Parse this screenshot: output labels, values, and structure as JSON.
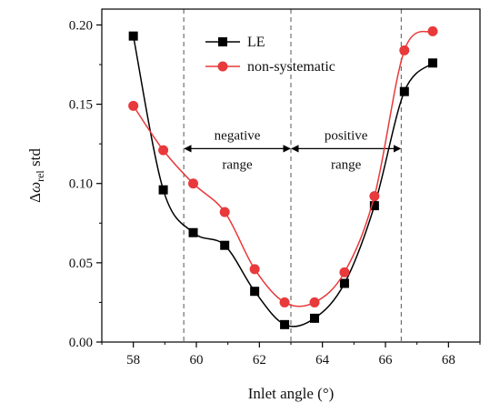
{
  "chart_data": {
    "type": "line",
    "title": "",
    "xlabel": "Inlet angle (°)",
    "ylabel": {
      "prefix": "Δ",
      "symbol": "ω",
      "subscript": "rel",
      "suffix": " std"
    },
    "xlim": [
      57,
      69
    ],
    "ylim": [
      0,
      0.21
    ],
    "x_ticks": [
      58,
      60,
      62,
      64,
      66,
      68
    ],
    "y_ticks": [
      0.0,
      0.05,
      0.1,
      0.15,
      0.2
    ],
    "x_tick_labels": [
      "58",
      "60",
      "62",
      "64",
      "66",
      "68"
    ],
    "y_tick_labels": [
      "0.00",
      "0.05",
      "0.10",
      "0.15",
      "0.20"
    ],
    "grid": false,
    "legend_position": "top-center",
    "series": [
      {
        "name": "LE",
        "color": "#000000",
        "marker": "square",
        "x": [
          58.0,
          58.95,
          59.9,
          60.9,
          61.85,
          62.8,
          63.75,
          64.7,
          65.65,
          66.6,
          67.5
        ],
        "y": [
          0.193,
          0.096,
          0.069,
          0.061,
          0.032,
          0.011,
          0.015,
          0.037,
          0.086,
          0.158,
          0.176
        ]
      },
      {
        "name": "non-systematic",
        "color": "#e8393b",
        "marker": "circle",
        "x": [
          58.0,
          58.95,
          59.9,
          60.9,
          61.85,
          62.8,
          63.75,
          64.7,
          65.65,
          66.6,
          67.5
        ],
        "y": [
          0.149,
          0.121,
          0.1,
          0.082,
          0.046,
          0.025,
          0.025,
          0.044,
          0.092,
          0.184,
          0.196
        ]
      }
    ],
    "reference_lines_x": [
      59.6,
      63.0,
      66.5
    ],
    "annotations": [
      {
        "id": "negative",
        "line1": "negative",
        "line2": "range",
        "x_from": 59.6,
        "x_to": 63.0,
        "y_arrow": 0.122
      },
      {
        "id": "positive",
        "line1": "positive",
        "line2": "range",
        "x_from": 63.0,
        "x_to": 66.5,
        "y_arrow": 0.122
      }
    ]
  }
}
